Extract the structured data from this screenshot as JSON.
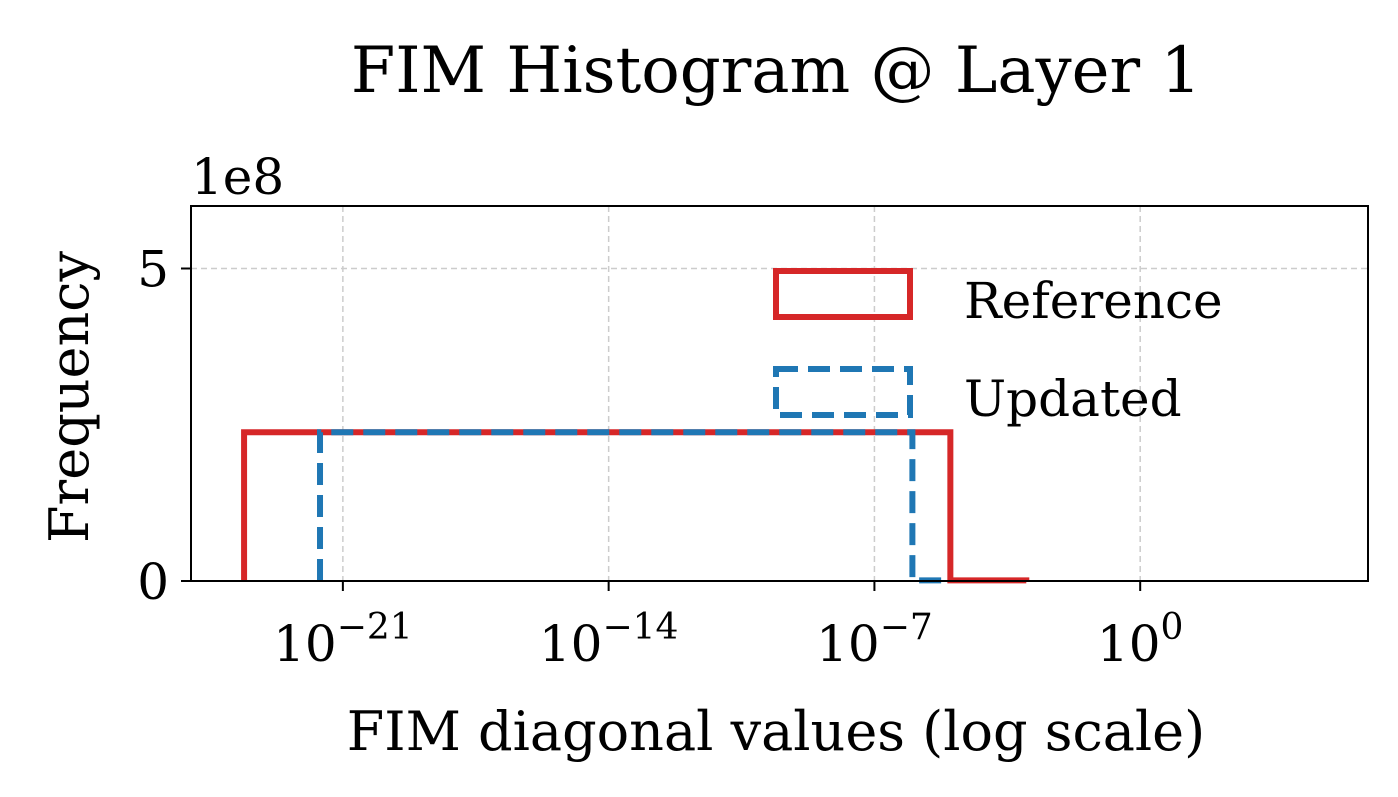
{
  "chart_data": {
    "type": "histogram",
    "title": "FIM Histogram @ Layer 1",
    "xlabel": "FIM diagonal values (log scale)",
    "ylabel": "Frequency",
    "y_offset_text": "1e8",
    "x_scale": "log",
    "xlim": [
      1e-25,
      1000000.0
    ],
    "ylim": [
      0,
      6
    ],
    "y_unit": 100000000,
    "x_ticks": [
      {
        "base": "10",
        "exp": "−21",
        "value": 1e-21
      },
      {
        "base": "10",
        "exp": "−14",
        "value": 1e-14
      },
      {
        "base": "10",
        "exp": "−7",
        "value": 1e-07
      },
      {
        "base": "10",
        "exp": "0",
        "value": 1
      }
    ],
    "y_ticks": [
      {
        "label": "0",
        "value": 0
      },
      {
        "label": "5",
        "value": 5
      }
    ],
    "grid": true,
    "legend_position": "upper right",
    "series": [
      {
        "name": "Reference",
        "color": "#d62728",
        "style": "solid",
        "bins": [
          {
            "x0": 2.5e-24,
            "x1": 1e-05,
            "value": 2.38
          },
          {
            "x0": 1e-05,
            "x1": 0.001,
            "value": 0.01
          }
        ]
      },
      {
        "name": "Updated",
        "color": "#1f77b4",
        "style": "dashed",
        "bins": [
          {
            "x0": 2.5e-22,
            "x1": 1e-06,
            "value": 2.38
          },
          {
            "x0": 1e-06,
            "x1": 1e-05,
            "value": 0.01
          }
        ]
      }
    ]
  }
}
